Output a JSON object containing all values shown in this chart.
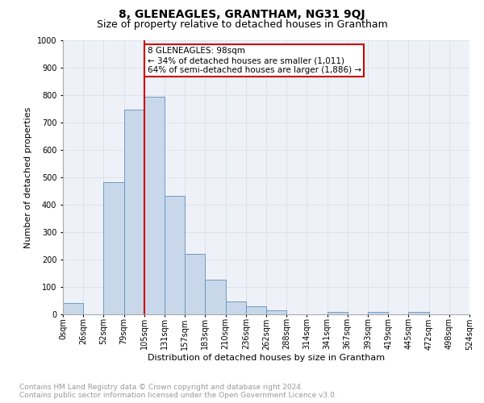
{
  "title1": "8, GLENEAGLES, GRANTHAM, NG31 9QJ",
  "title2": "Size of property relative to detached houses in Grantham",
  "xlabel": "Distribution of detached houses by size in Grantham",
  "ylabel": "Number of detached properties",
  "bins": [
    "0sqm",
    "26sqm",
    "52sqm",
    "79sqm",
    "105sqm",
    "131sqm",
    "157sqm",
    "183sqm",
    "210sqm",
    "236sqm",
    "262sqm",
    "288sqm",
    "314sqm",
    "341sqm",
    "367sqm",
    "393sqm",
    "419sqm",
    "445sqm",
    "472sqm",
    "498sqm",
    "524sqm"
  ],
  "values": [
    40,
    0,
    483,
    748,
    795,
    432,
    220,
    127,
    48,
    28,
    16,
    0,
    0,
    8,
    0,
    8,
    0,
    8,
    0,
    0
  ],
  "bar_color": "#c8d8ea",
  "bar_edge_color": "#6090bb",
  "vline_bin_index": 4,
  "annotation_text": "8 GLENEAGLES: 98sqm\n← 34% of detached houses are smaller (1,011)\n64% of semi-detached houses are larger (1,886) →",
  "annotation_box_color": "white",
  "annotation_box_edge_color": "#cc0000",
  "vline_color": "#cc0000",
  "ylim": [
    0,
    1000
  ],
  "yticks": [
    0,
    100,
    200,
    300,
    400,
    500,
    600,
    700,
    800,
    900,
    1000
  ],
  "grid_color": "#d8e0ec",
  "background_color": "#eef2f8",
  "footer_line1": "Contains HM Land Registry data © Crown copyright and database right 2024.",
  "footer_line2": "Contains public sector information licensed under the Open Government Licence v3.0.",
  "title1_fontsize": 10,
  "title2_fontsize": 9,
  "axis_label_fontsize": 8,
  "tick_fontsize": 7,
  "annotation_fontsize": 7.5,
  "footer_fontsize": 6.5
}
